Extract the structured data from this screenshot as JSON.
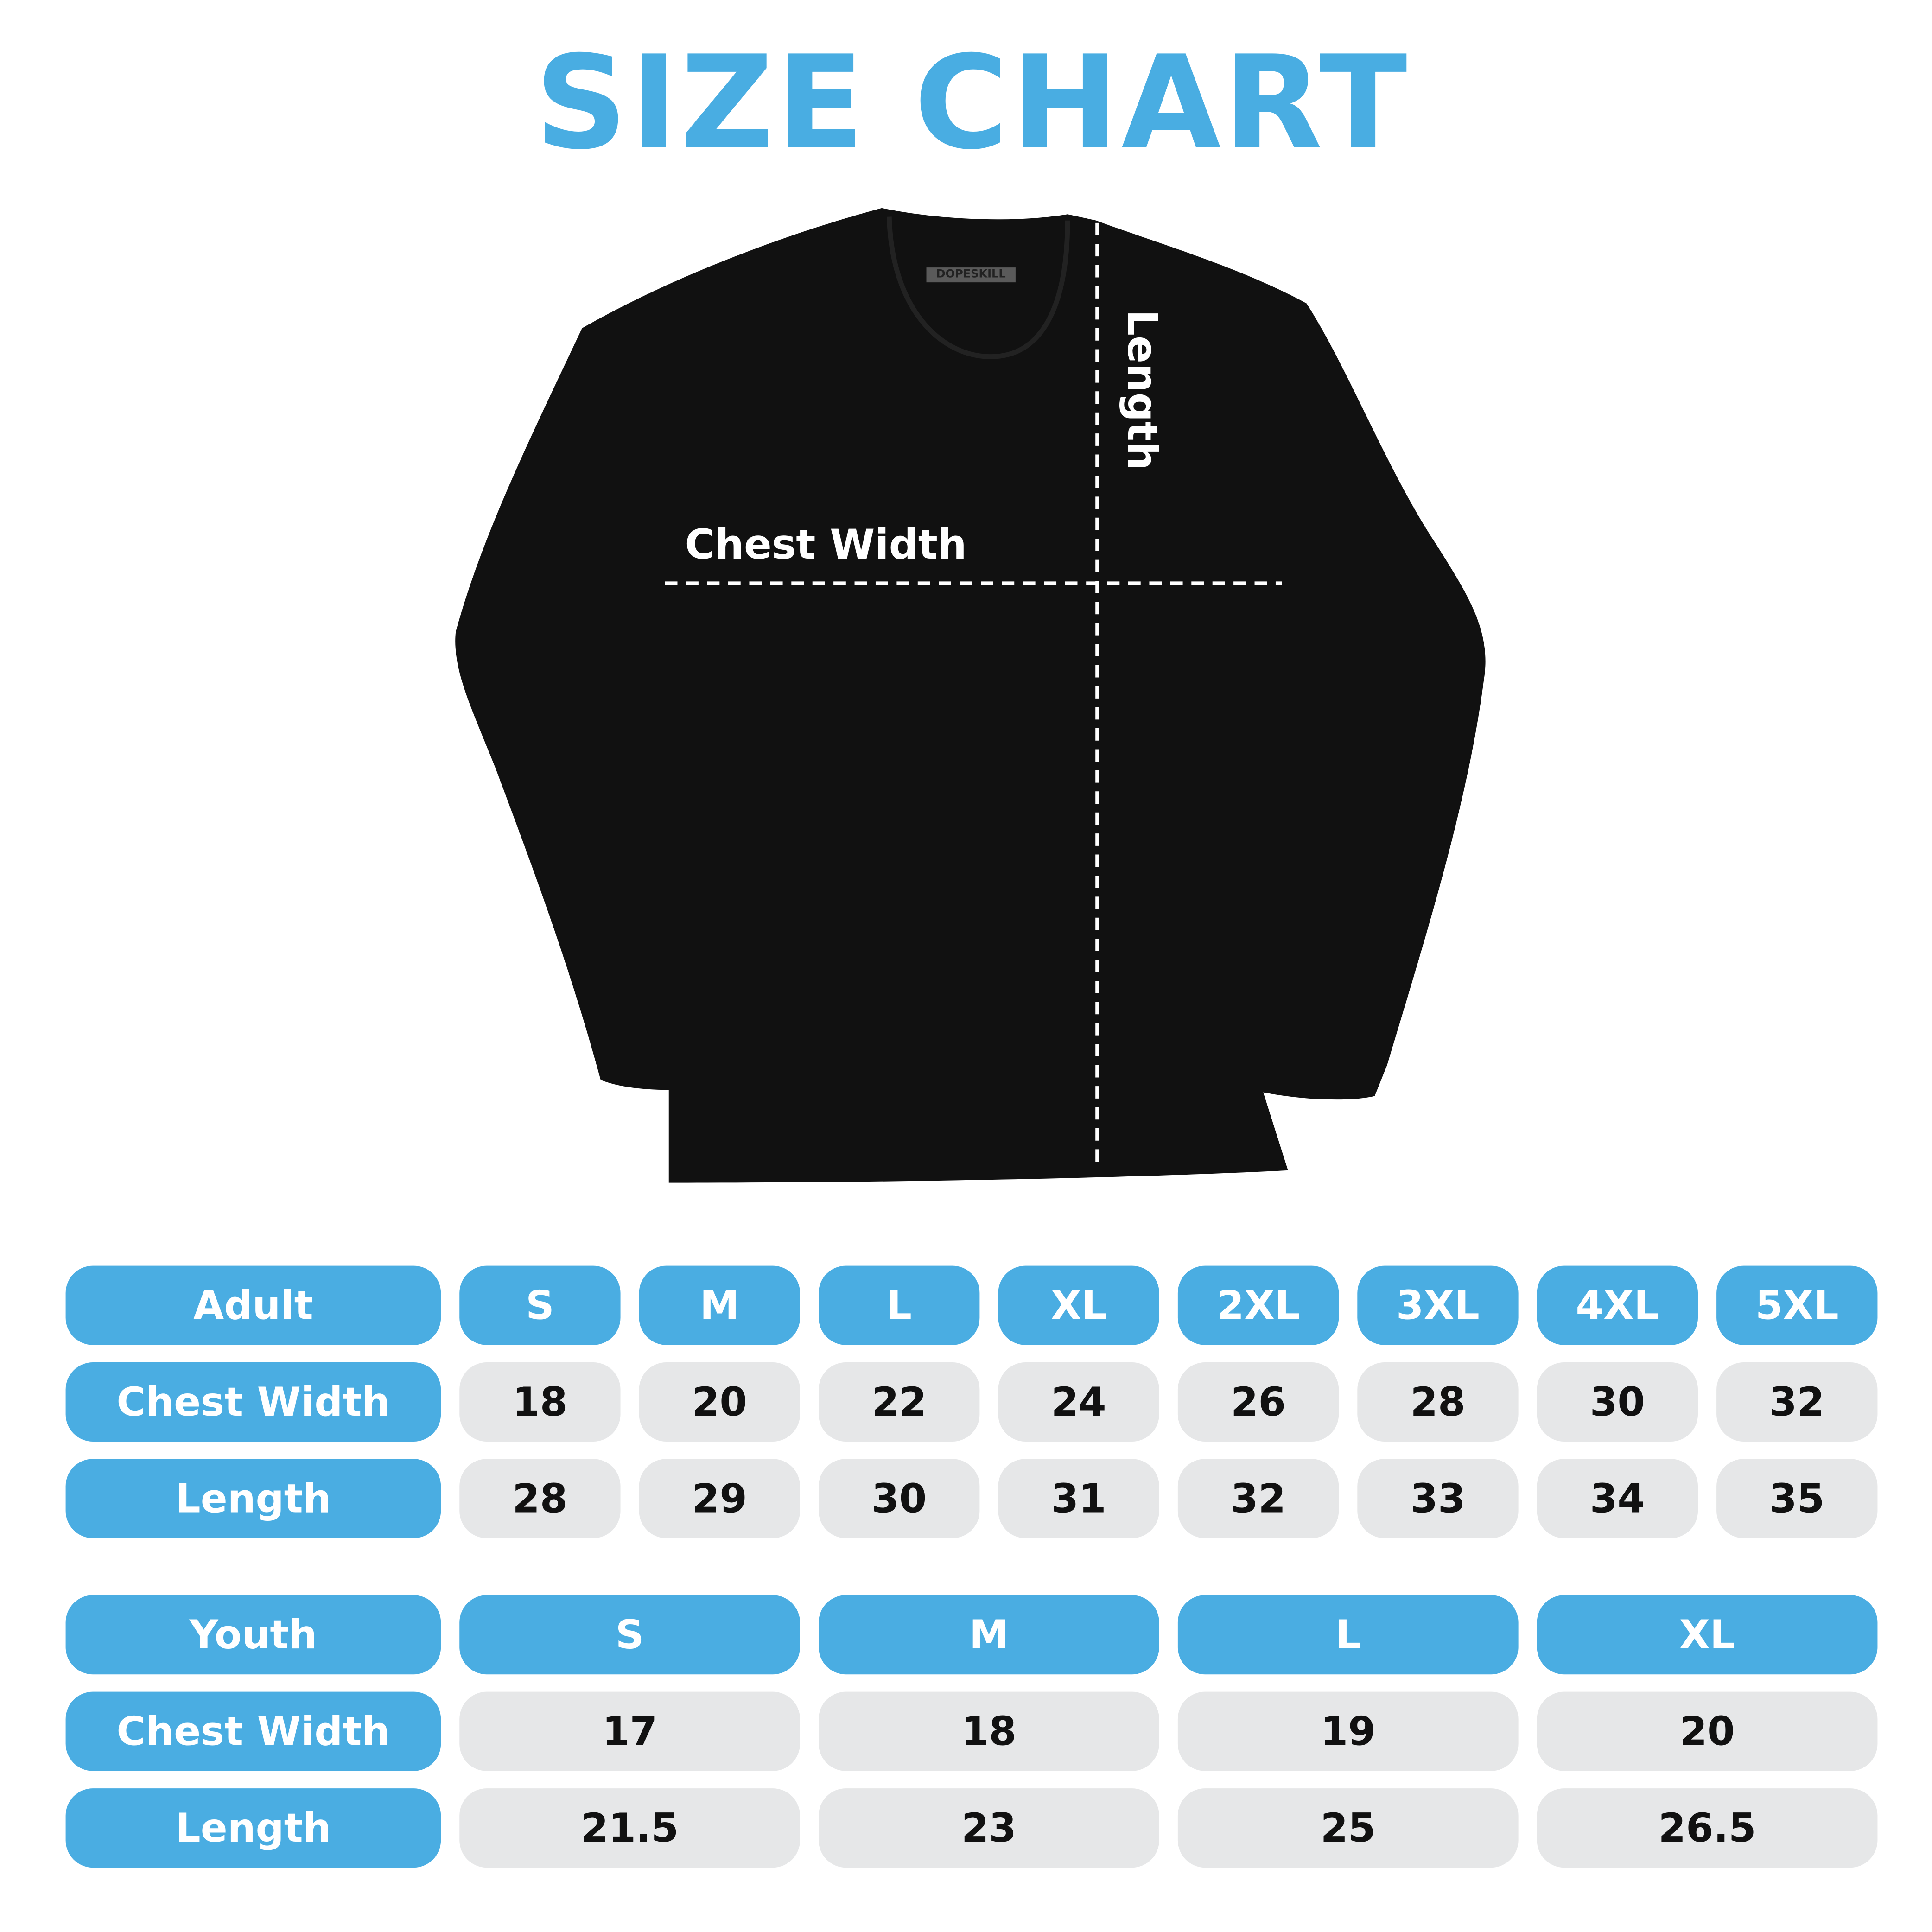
{
  "title": "SIZE CHART",
  "brand_tag": "DOPESKILL",
  "measure_labels": {
    "chest": "Chest Width",
    "length": "Length"
  },
  "colors": {
    "accent": "#4AADE2",
    "cell": "#E6E7E8",
    "shirt": "#111111"
  },
  "adult": {
    "header": "Adult",
    "sizes": [
      "S",
      "M",
      "L",
      "XL",
      "2XL",
      "3XL",
      "4XL",
      "5XL"
    ],
    "rows": [
      {
        "label": "Chest Width",
        "values": [
          "18",
          "20",
          "22",
          "24",
          "26",
          "28",
          "30",
          "32"
        ]
      },
      {
        "label": "Length",
        "values": [
          "28",
          "29",
          "30",
          "31",
          "32",
          "33",
          "34",
          "35"
        ]
      }
    ]
  },
  "youth": {
    "header": "Youth",
    "sizes": [
      "S",
      "M",
      "L",
      "XL"
    ],
    "rows": [
      {
        "label": "Chest Width",
        "values": [
          "17",
          "18",
          "19",
          "20"
        ]
      },
      {
        "label": "Length",
        "values": [
          "21.5",
          "23",
          "25",
          "26.5"
        ]
      }
    ]
  }
}
